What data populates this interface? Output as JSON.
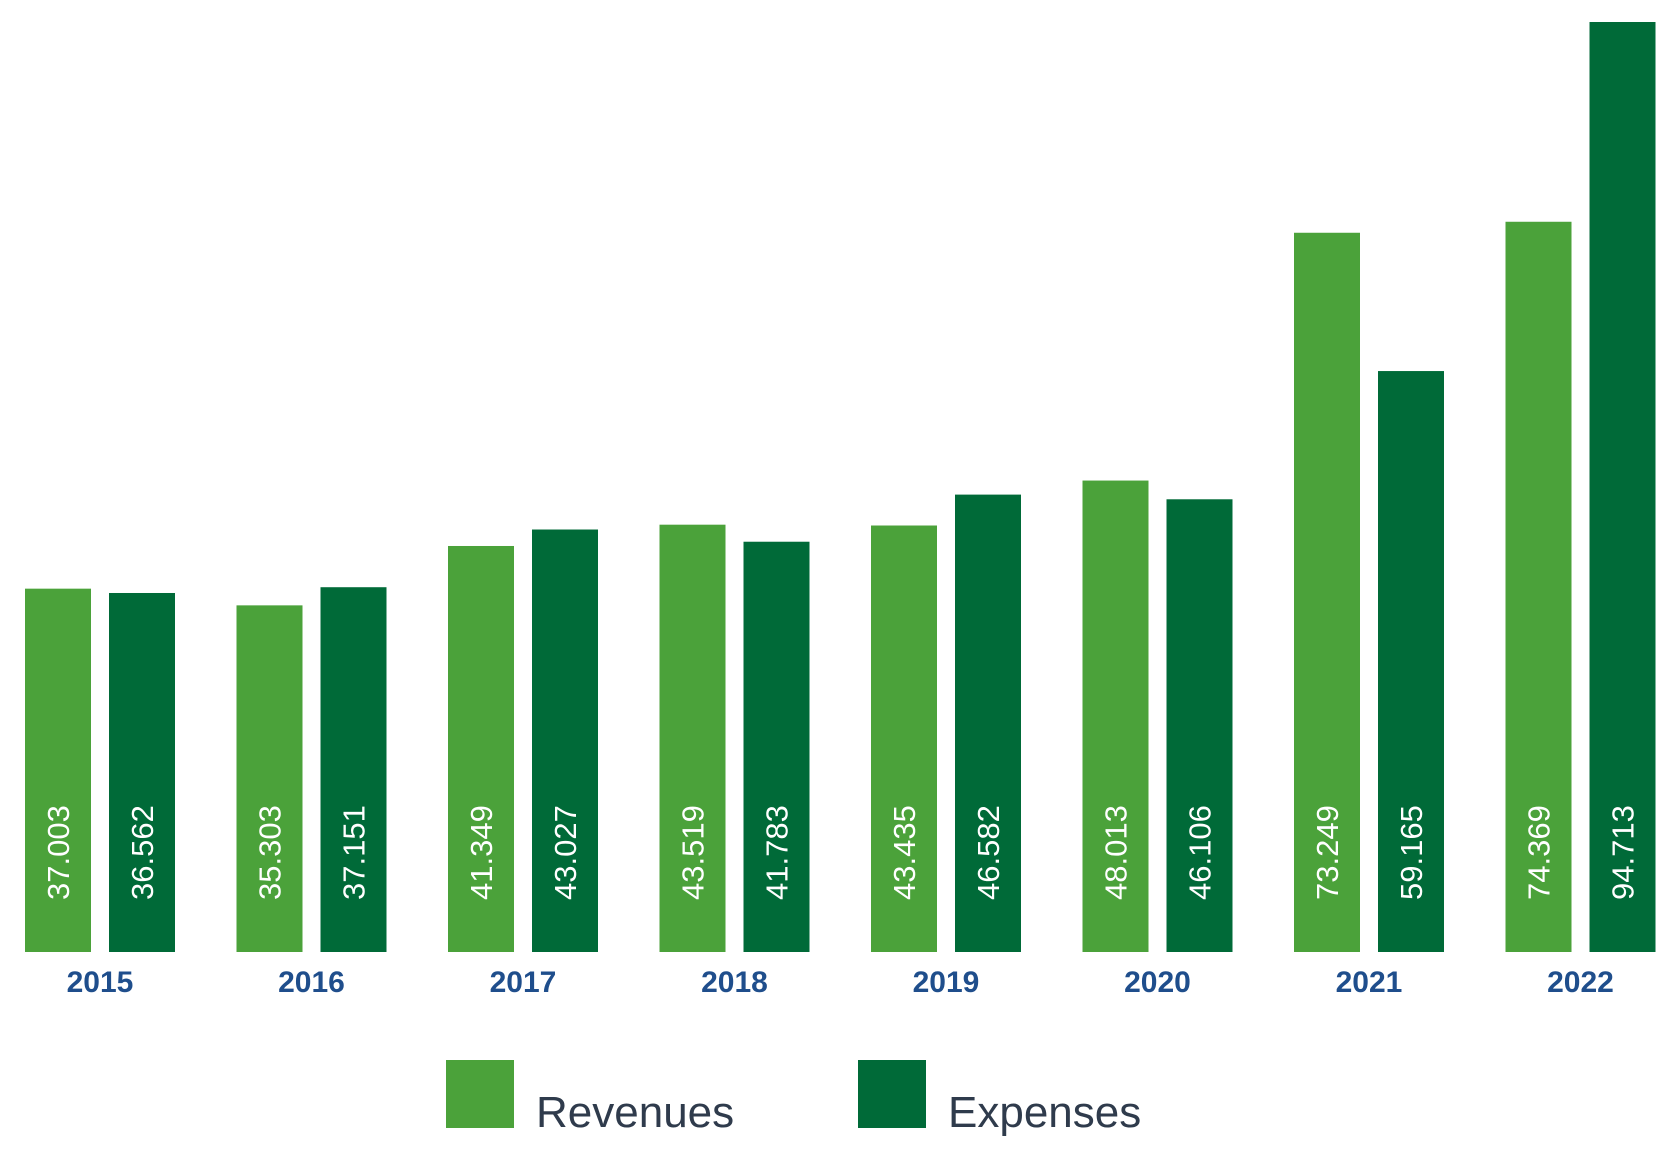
{
  "chart_data": {
    "type": "bar",
    "title": "",
    "xlabel": "",
    "ylabel": "",
    "categories": [
      "2015",
      "2016",
      "2017",
      "2018",
      "2019",
      "2020",
      "2021",
      "2022"
    ],
    "series": [
      {
        "name": "Revenues",
        "color": "#4ba23a",
        "values": [
          37003,
          35303,
          41349,
          43519,
          43435,
          48013,
          73249,
          74369
        ],
        "labels": [
          "37.003",
          "35.303",
          "41.349",
          "43.519",
          "43.435",
          "48.013",
          "73.249",
          "74.369"
        ]
      },
      {
        "name": "Expenses",
        "color": "#006a38",
        "values": [
          36562,
          37151,
          43027,
          41783,
          46582,
          46106,
          59165,
          94713
        ],
        "labels": [
          "36.562",
          "37.151",
          "43.027",
          "41.783",
          "46.582",
          "46.106",
          "59.165",
          "94.713"
        ]
      }
    ],
    "ylim": [
      0,
      94713
    ],
    "grid": false,
    "legend_position": "bottom",
    "colors": {
      "year_label": "#1f4e8c",
      "legend_text": "#2f3b4c",
      "value_label": "#ffffff"
    }
  }
}
